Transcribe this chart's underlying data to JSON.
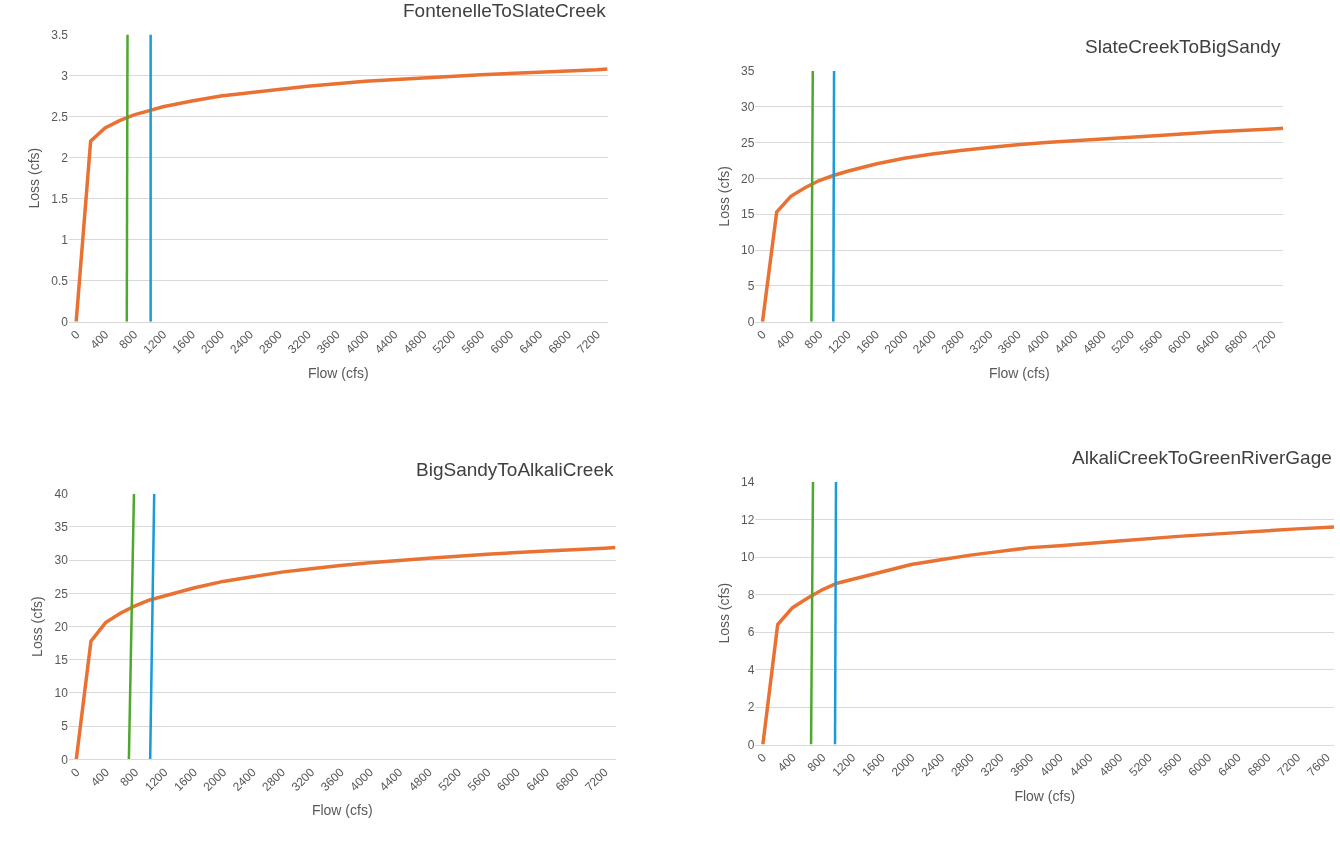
{
  "chart_data": [
    {
      "type": "line",
      "title": "FontenelleToSlateCreek",
      "xlabel": "Flow (cfs)",
      "ylabel": "Loss (cfs)",
      "xlim": [
        -100,
        7350
      ],
      "xticks": [
        0,
        400,
        800,
        1200,
        1600,
        2000,
        2400,
        2800,
        3200,
        3600,
        4000,
        4400,
        4800,
        5200,
        5600,
        6000,
        6400,
        6800,
        7200
      ],
      "ylim": [
        0,
        3.5
      ],
      "yticks": [
        0,
        0.5,
        1,
        1.5,
        2,
        2.5,
        3,
        3.5
      ],
      "grid": "y",
      "series": [
        {
          "color": "#e97132",
          "x": [
            0,
            200,
            400,
            600,
            800,
            1000,
            1200,
            1600,
            2000,
            2400,
            2800,
            3200,
            3600,
            4000,
            4800,
            5600,
            6400,
            7200,
            7350
          ],
          "values": [
            0,
            2.2,
            2.36,
            2.45,
            2.52,
            2.57,
            2.62,
            2.69,
            2.75,
            2.79,
            2.83,
            2.87,
            2.9,
            2.93,
            2.97,
            3.01,
            3.04,
            3.07,
            3.08
          ]
        },
        {
          "color": "#4ea72e",
          "x": [
            700,
            710
          ],
          "values": [
            0,
            3.5
          ]
        },
        {
          "color": "#1a9ad6",
          "x": [
            1030,
            1030
          ],
          "values": [
            0,
            3.5
          ]
        }
      ]
    },
    {
      "type": "line",
      "title": "SlateCreekToBigSandy",
      "xlabel": "Flow (cfs)",
      "ylabel": "Loss (cfs)",
      "xlim": [
        -100,
        7350
      ],
      "xticks": [
        0,
        400,
        800,
        1200,
        1600,
        2000,
        2400,
        2800,
        3200,
        3600,
        4000,
        4400,
        4800,
        5200,
        5600,
        6000,
        6400,
        6800,
        7200
      ],
      "ylim": [
        0,
        35
      ],
      "yticks": [
        0,
        5,
        10,
        15,
        20,
        25,
        30,
        35
      ],
      "grid": "y",
      "series": [
        {
          "color": "#e97132",
          "x": [
            0,
            200,
            400,
            600,
            800,
            1000,
            1200,
            1600,
            2000,
            2400,
            2800,
            3200,
            3600,
            4000,
            4800,
            5600,
            6400,
            7200,
            7350
          ],
          "values": [
            0,
            15.3,
            17.5,
            18.7,
            19.7,
            20.4,
            21.0,
            22.0,
            22.8,
            23.4,
            23.9,
            24.3,
            24.7,
            25.0,
            25.5,
            26.0,
            26.5,
            26.9,
            27.0
          ]
        },
        {
          "color": "#4ea72e",
          "x": [
            690,
            710
          ],
          "values": [
            0,
            35
          ]
        },
        {
          "color": "#1a9ad6",
          "x": [
            1000,
            1010
          ],
          "values": [
            0,
            35
          ]
        }
      ]
    },
    {
      "type": "line",
      "title": "BigSandyToAlkaliCreek",
      "xlabel": "Flow (cfs)",
      "ylabel": "Loss (cfs)",
      "xlim": [
        -100,
        7350
      ],
      "xticks": [
        0,
        400,
        800,
        1200,
        1600,
        2000,
        2400,
        2800,
        3200,
        3600,
        4000,
        4400,
        4800,
        5200,
        5600,
        6000,
        6400,
        6800,
        7200
      ],
      "ylim": [
        0,
        40
      ],
      "yticks": [
        0,
        5,
        10,
        15,
        20,
        25,
        30,
        35,
        40
      ],
      "grid": "y",
      "series": [
        {
          "color": "#e97132",
          "x": [
            0,
            200,
            400,
            600,
            800,
            1000,
            1200,
            1600,
            2000,
            2400,
            2800,
            3200,
            3600,
            4000,
            4800,
            5600,
            6400,
            7200,
            7350
          ],
          "values": [
            0,
            17.8,
            20.6,
            22.0,
            23.1,
            24.0,
            24.6,
            25.8,
            26.8,
            27.5,
            28.2,
            28.7,
            29.2,
            29.6,
            30.3,
            30.9,
            31.4,
            31.8,
            31.9
          ]
        },
        {
          "color": "#4ea72e",
          "x": [
            717,
            786
          ],
          "values": [
            0,
            40
          ]
        },
        {
          "color": "#1a9ad6",
          "x": [
            1007,
            1062
          ],
          "values": [
            0,
            40
          ]
        }
      ]
    },
    {
      "type": "line",
      "title": "AlkaliCreekToGreenRiverGage",
      "xlabel": "Flow (cfs)",
      "ylabel": "Loss (cfs)",
      "xlim": [
        -100,
        7700
      ],
      "xticks": [
        0,
        400,
        800,
        1200,
        1600,
        2000,
        2400,
        2800,
        3200,
        3600,
        4000,
        4400,
        4800,
        5200,
        5600,
        6000,
        6400,
        6800,
        7200,
        7600
      ],
      "ylim": [
        0,
        14
      ],
      "yticks": [
        0,
        2,
        4,
        6,
        8,
        10,
        12,
        14
      ],
      "grid": "y",
      "series": [
        {
          "color": "#e97132",
          "x": [
            0,
            200,
            400,
            600,
            800,
            1000,
            1200,
            1600,
            2000,
            2400,
            2800,
            3200,
            3600,
            4000,
            4800,
            5600,
            6400,
            7200,
            7700
          ],
          "values": [
            0,
            6.4,
            7.3,
            7.8,
            8.25,
            8.6,
            8.8,
            9.2,
            9.6,
            9.85,
            10.1,
            10.3,
            10.5,
            10.6,
            10.85,
            11.1,
            11.3,
            11.5,
            11.6
          ]
        },
        {
          "color": "#4ea72e",
          "x": [
            650,
            676
          ],
          "values": [
            0,
            14
          ]
        },
        {
          "color": "#1a9ad6",
          "x": [
            973,
            986
          ],
          "values": [
            0,
            14
          ]
        }
      ]
    }
  ]
}
